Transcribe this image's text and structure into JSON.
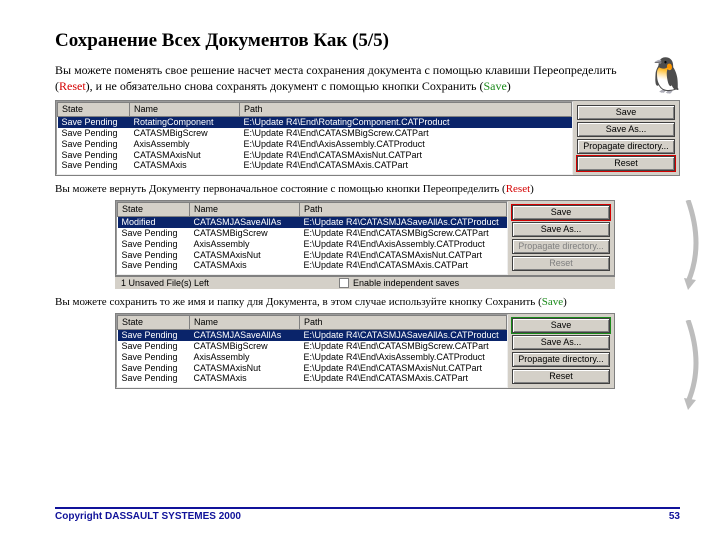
{
  "title": "Сохранение Всех Документов Как (5/5)",
  "intro": {
    "pre": "Вы можете поменять свое решение насчет места сохранения документа  с помощью клавиши Переопределить (",
    "reset": "Reset",
    "mid": "), и не обязательно снова сохранять документ с помощью кнопки Сохранить (",
    "save": "Save",
    "post": ")"
  },
  "cap2": {
    "pre": "Вы можете вернуть Документу первоначальное состояние с помощью кнопки Переопределить (",
    "reset": "Reset",
    "post": ")"
  },
  "cap3": {
    "pre": "Вы можете сохранить то же имя и папку для Документа, в этом случае используйте кнопку Сохранить (",
    "save": "Save",
    "post": ")"
  },
  "cols": {
    "state": "State",
    "name": "Name",
    "path": "Path"
  },
  "buttons": {
    "save": "Save",
    "saveas": "Save As...",
    "propagate": "Propagate directory...",
    "reset": "Reset"
  },
  "status": {
    "unsaved": "1 Unsaved File(s) Left",
    "enable": "Enable independent saves"
  },
  "dlg1": {
    "rows": [
      {
        "state": "Save Pending",
        "name": "RotatingComponent",
        "path": "E:\\Update R4\\End\\RotatingComponent.CATProduct",
        "sel": true
      },
      {
        "state": "Save Pending",
        "name": "CATASMBigScrew",
        "path": "E:\\Update R4\\End\\CATASMBigScrew.CATPart"
      },
      {
        "state": "Save Pending",
        "name": "AxisAssembly",
        "path": "E:\\Update R4\\End\\AxisAssembly.CATProduct"
      },
      {
        "state": "Save Pending",
        "name": "CATASMAxisNut",
        "path": "E:\\Update R4\\End\\CATASMAxisNut.CATPart"
      },
      {
        "state": "Save Pending",
        "name": "CATASMAxis",
        "path": "E:\\Update R4\\End\\CATASMAxis.CATPart"
      }
    ]
  },
  "dlg2": {
    "rows": [
      {
        "state": "Modified",
        "name": "CATASMJASaveAllAs",
        "path": "E:\\Update R4\\CATASMJASaveAllAs.CATProduct",
        "sel": true,
        "mod": true
      },
      {
        "state": "Save Pending",
        "name": "CATASMBigScrew",
        "path": "E:\\Update R4\\End\\CATASMBigScrew.CATPart"
      },
      {
        "state": "Save Pending",
        "name": "AxisAssembly",
        "path": "E:\\Update R4\\End\\AxisAssembly.CATProduct"
      },
      {
        "state": "Save Pending",
        "name": "CATASMAxisNut",
        "path": "E:\\Update R4\\End\\CATASMAxisNut.CATPart"
      },
      {
        "state": "Save Pending",
        "name": "CATASMAxis",
        "path": "E:\\Update R4\\End\\CATASMAxis.CATPart"
      }
    ]
  },
  "dlg3": {
    "rows": [
      {
        "state": "Save Pending",
        "name": "CATASMJASaveAllAs",
        "path": "E:\\Update R4\\CATASMJASaveAllAs.CATProduct",
        "sel": true
      },
      {
        "state": "Save Pending",
        "name": "CATASMBigScrew",
        "path": "E:\\Update R4\\End\\CATASMBigScrew.CATPart"
      },
      {
        "state": "Save Pending",
        "name": "AxisAssembly",
        "path": "E:\\Update R4\\End\\AxisAssembly.CATProduct"
      },
      {
        "state": "Save Pending",
        "name": "CATASMAxisNut",
        "path": "E:\\Update R4\\End\\CATASMAxisNut.CATPart"
      },
      {
        "state": "Save Pending",
        "name": "CATASMAxis",
        "path": "E:\\Update R4\\End\\CATASMAxis.CATPart"
      }
    ]
  },
  "footer": {
    "copyright": "Copyright DASSAULT SYSTEMES 2000",
    "page": "53"
  },
  "penguin_glyph": "🐧",
  "col_widths": {
    "state": 72,
    "name": 110
  },
  "colors": {
    "selection_bg": "#0a246a",
    "selection_fg": "#ffffff",
    "dialog_bg": "#d4d0c8",
    "red": "#d40000",
    "green": "#1a8a1a",
    "footer_color": "#10129a"
  }
}
